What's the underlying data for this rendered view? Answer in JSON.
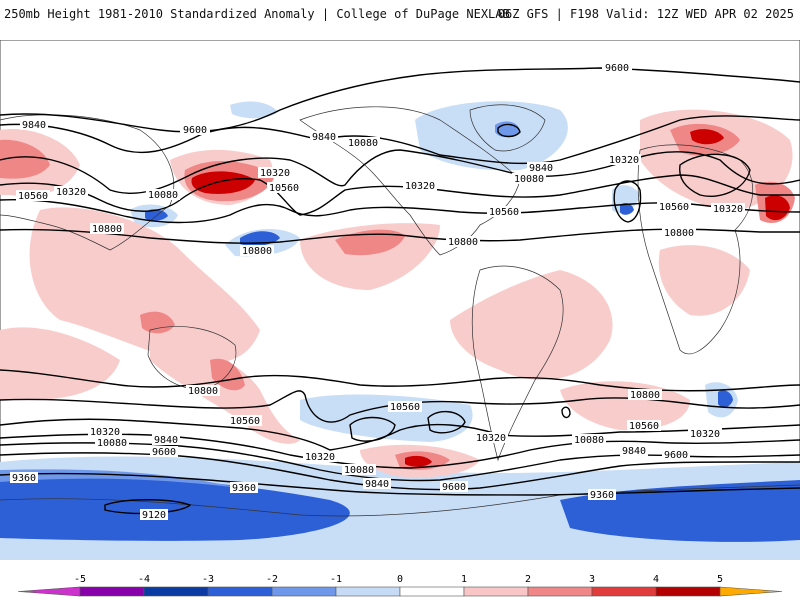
{
  "header": {
    "left": "250mb Height 1981-2010 Standardized Anomaly | College of DuPage NEXLAB",
    "right": "06Z GFS | F198 Valid: 12Z WED APR 02 2025"
  },
  "contour_labels": [
    {
      "id": "l1",
      "text": "9600"
    },
    {
      "id": "l2",
      "text": "9840"
    },
    {
      "id": "l3",
      "text": "9600"
    },
    {
      "id": "l4",
      "text": "9840"
    },
    {
      "id": "l5",
      "text": "10080"
    },
    {
      "id": "l6",
      "text": "10560"
    },
    {
      "id": "l7",
      "text": "10320"
    },
    {
      "id": "l8",
      "text": "10080"
    },
    {
      "id": "l9",
      "text": "10320"
    },
    {
      "id": "l10",
      "text": "10560"
    },
    {
      "id": "l11",
      "text": "10800"
    },
    {
      "id": "l12",
      "text": "10800"
    },
    {
      "id": "l13",
      "text": "10320"
    },
    {
      "id": "l14",
      "text": "9840"
    },
    {
      "id": "l15",
      "text": "10080"
    },
    {
      "id": "l16",
      "text": "10560"
    },
    {
      "id": "l17",
      "text": "10800"
    },
    {
      "id": "l18",
      "text": "10320"
    },
    {
      "id": "l19",
      "text": "10560"
    },
    {
      "id": "l20",
      "text": "10320"
    },
    {
      "id": "l21",
      "text": "10800"
    },
    {
      "id": "l22",
      "text": "10800"
    },
    {
      "id": "l23",
      "text": "10560"
    },
    {
      "id": "l24",
      "text": "10320"
    },
    {
      "id": "l25",
      "text": "10080"
    },
    {
      "id": "l26",
      "text": "9840"
    },
    {
      "id": "l27",
      "text": "9600"
    },
    {
      "id": "l28",
      "text": "10560"
    },
    {
      "id": "l29",
      "text": "10320"
    },
    {
      "id": "l30",
      "text": "10080"
    },
    {
      "id": "l31",
      "text": "9840"
    },
    {
      "id": "l32",
      "text": "9600"
    },
    {
      "id": "l33",
      "text": "10320"
    },
    {
      "id": "l34",
      "text": "10080"
    },
    {
      "id": "l35",
      "text": "9840"
    },
    {
      "id": "l36",
      "text": "9600"
    },
    {
      "id": "l37",
      "text": "10800"
    },
    {
      "id": "l38",
      "text": "10560"
    },
    {
      "id": "l39",
      "text": "10320"
    },
    {
      "id": "l40",
      "text": "9360"
    },
    {
      "id": "l41",
      "text": "9360"
    },
    {
      "id": "l42",
      "text": "9360"
    },
    {
      "id": "l43",
      "text": "9120"
    }
  ],
  "colorbar": {
    "ticks": [
      "-5",
      "-4",
      "-3",
      "-2",
      "-1",
      "0",
      "1",
      "2",
      "3",
      "4",
      "5"
    ],
    "colors": [
      "#cc33cc",
      "#8800aa",
      "#0b3aa3",
      "#2d5fd6",
      "#6f98ea",
      "#c6dcf6",
      "#ffffff",
      "#f8c6c6",
      "#ef8787",
      "#e03c3c",
      "#b50000",
      "#ffaa00"
    ]
  },
  "colors": {
    "strong_positive": "#cc0000",
    "positive": "#f08a8a",
    "weak_positive": "#f9cccc",
    "weak_negative": "#c8ddf6",
    "negative": "#7aa0ea",
    "strong_negative": "#1f4fcf",
    "land_outline": "#333333",
    "contour": "#000000"
  }
}
